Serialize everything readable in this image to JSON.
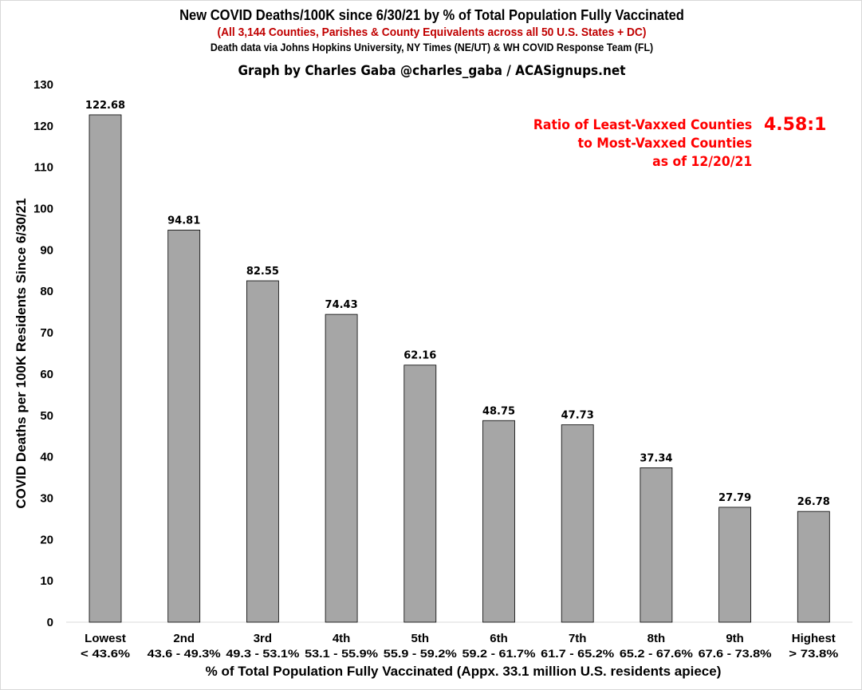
{
  "chart_data": {
    "type": "bar",
    "title": "New COVID Deaths/100K since 6/30/21 by % of Total Population Fully Vaccinated",
    "subtitle": "(All 3,144 Counties, Parishes & County Equivalents across all 50 U.S. States + DC)",
    "source": "Death data via Johns Hopkins University, NY Times (NE/UT) & WH COVID Response Team (FL)",
    "credit": "Graph by Charles Gaba @charles_gaba / ACASignups.net",
    "xlabel": "% of Total Population Fully Vaccinated (Appx. 33.1 million U.S. residents apiece)",
    "ylabel": "COVID Deaths per 100K Residents Since 6/30/21",
    "categories": [
      "Lowest",
      "2nd",
      "3rd",
      "4th",
      "5th",
      "6th",
      "7th",
      "8th",
      "9th",
      "Highest"
    ],
    "category_ranges": [
      "< 43.6%",
      "43.6 - 49.3%",
      "49.3 - 53.1%",
      "53.1 - 55.9%",
      "55.9 - 59.2%",
      "59.2 - 61.7%",
      "61.7 - 65.2%",
      "65.2 - 67.6%",
      "67.6 - 73.8%",
      "> 73.8%"
    ],
    "values": [
      122.68,
      94.81,
      82.55,
      74.43,
      62.16,
      48.75,
      47.73,
      37.34,
      27.79,
      26.78
    ],
    "data_labels": [
      "122.68",
      "94.81",
      "82.55",
      "74.43",
      "62.16",
      "48.75",
      "47.73",
      "37.34",
      "27.79",
      "26.78"
    ],
    "ylim": [
      0,
      130
    ],
    "yticks": [
      0,
      10,
      20,
      30,
      40,
      50,
      60,
      70,
      80,
      90,
      100,
      110,
      120,
      130
    ],
    "grid": false,
    "bar_color": "#a6a6a6",
    "annotation": {
      "lines": [
        "Ratio of Least-Vaxxed Counties",
        "to Most-Vaxxed Counties",
        "as of 12/20/21"
      ],
      "ratio": "4.58:1",
      "color": "#ff0000"
    }
  }
}
